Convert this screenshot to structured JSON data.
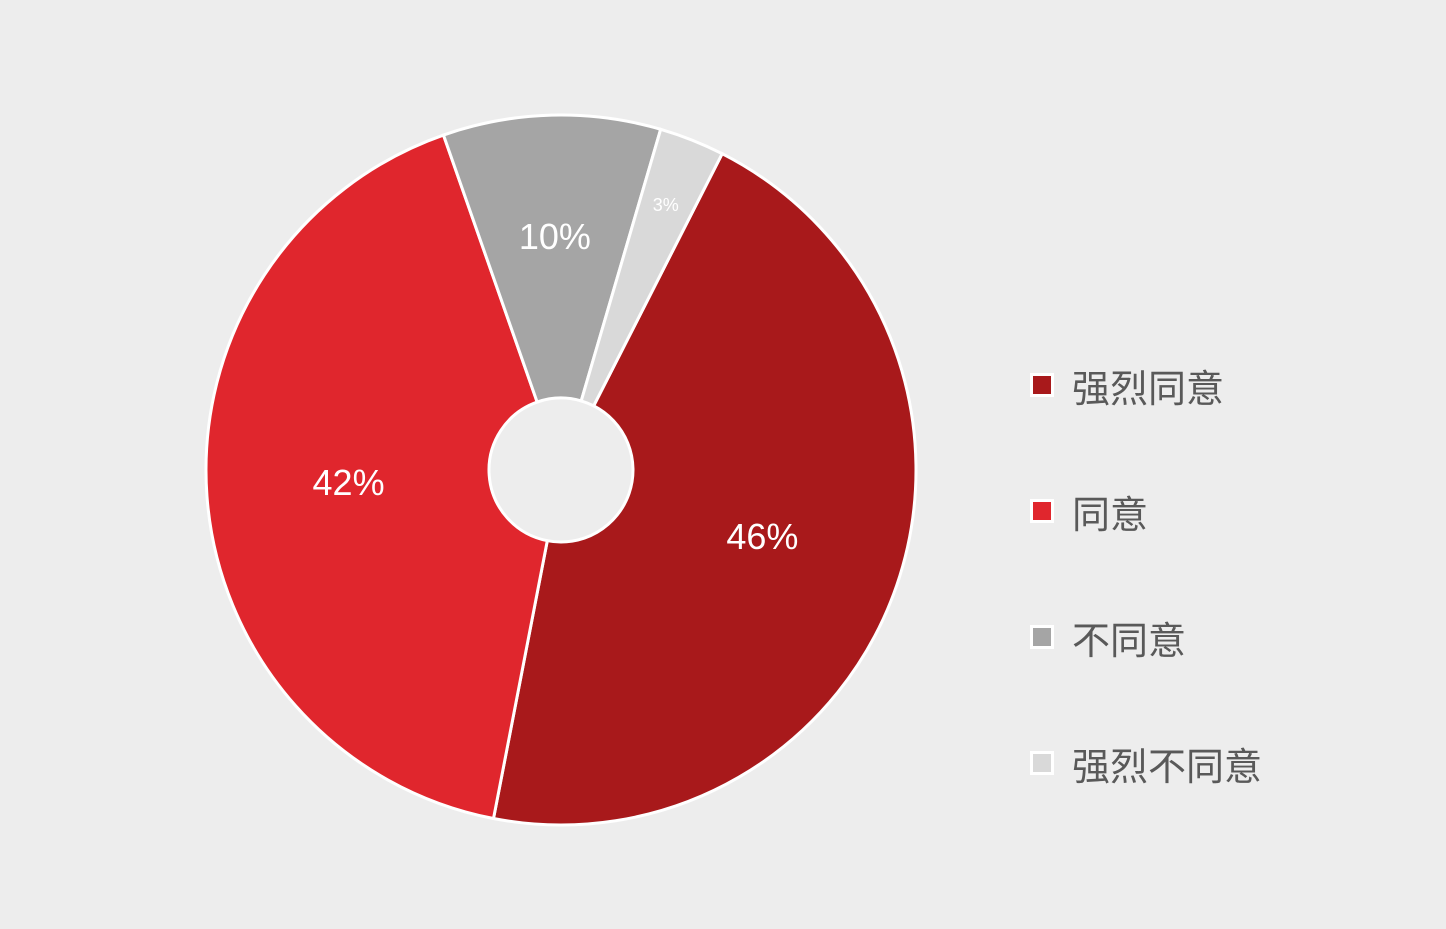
{
  "chart_data": {
    "type": "pie",
    "variant": "donut",
    "categories": [
      "强烈同意",
      "同意",
      "不同意",
      "强烈不同意"
    ],
    "values": [
      46,
      42,
      10,
      3
    ],
    "labels": [
      "46%",
      "42%",
      "10%",
      "3%"
    ],
    "colors": [
      "#a8191b",
      "#e0262d",
      "#a5a5a5",
      "#d9d9d9"
    ],
    "legend": "right",
    "title": ""
  }
}
